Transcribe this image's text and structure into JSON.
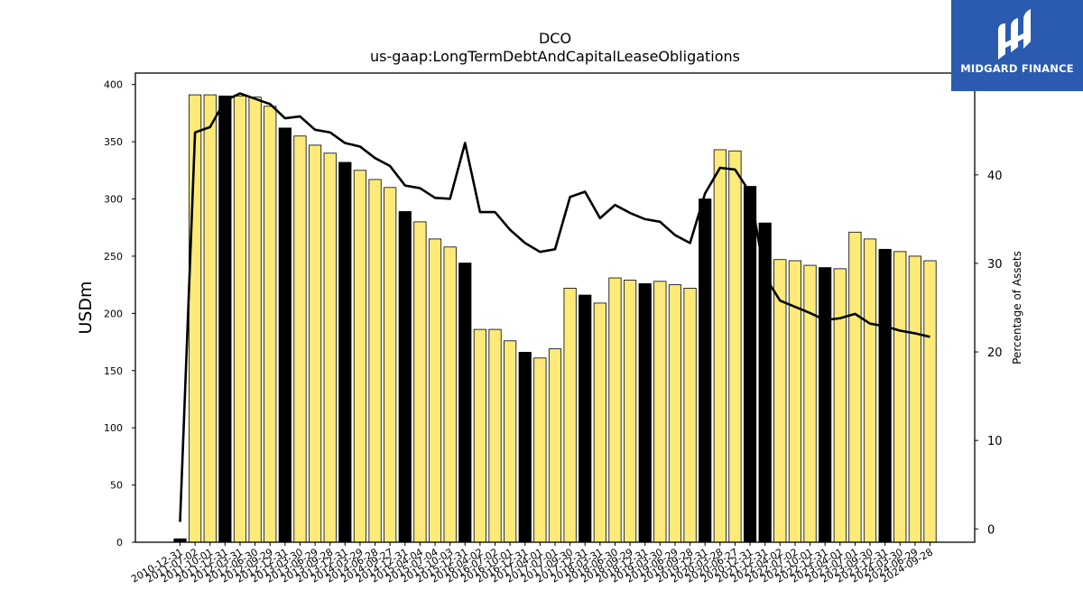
{
  "chart_data": {
    "type": "bar",
    "title": "DCO",
    "subtitle": "us-gaap:LongTermDebtAndCapitalLeaseObligations",
    "ylabel": "USDm",
    "y2label": "Percentage of Assets",
    "ylim": [
      0,
      410
    ],
    "y2lim": [
      -1.5,
      51.5
    ],
    "yticks": [
      0,
      50,
      100,
      150,
      200,
      250,
      300,
      350,
      400
    ],
    "y2ticks": [
      0,
      10,
      20,
      30,
      40
    ],
    "categories": [
      "2010-12-31",
      "2011-07-02",
      "2011-10-01",
      "2011-12-31",
      "2012-03-31",
      "2012-06-30",
      "2012-09-29",
      "2012-12-31",
      "2013-03-30",
      "2013-06-29",
      "2013-09-28",
      "2013-12-31",
      "2014-03-29",
      "2014-06-28",
      "2014-09-27",
      "2014-12-31",
      "2015-04-04",
      "2015-07-04",
      "2015-10-03",
      "2015-12-31",
      "2016-04-02",
      "2016-07-02",
      "2016-10-01",
      "2016-12-31",
      "2017-04-01",
      "2017-07-01",
      "2017-09-30",
      "2017-12-31",
      "2018-03-31",
      "2018-06-30",
      "2018-09-29",
      "2018-12-31",
      "2019-03-30",
      "2019-06-29",
      "2019-09-28",
      "2019-12-31",
      "2020-03-28",
      "2020-06-27",
      "2020-12-31",
      "2021-12-31",
      "2022-04-02",
      "2022-07-02",
      "2022-10-01",
      "2022-12-31",
      "2023-04-01",
      "2023-07-01",
      "2023-09-30",
      "2023-12-31",
      "2024-03-30",
      "2024-06-29",
      "2024-09-28"
    ],
    "series": [
      {
        "kind": "bar",
        "values": [
          3,
          391,
          391,
          390,
          390,
          389,
          381,
          362,
          355,
          347,
          340,
          332,
          325,
          317,
          310,
          289,
          280,
          265,
          258,
          244,
          186,
          186,
          176,
          166,
          161,
          169,
          222,
          216,
          209,
          231,
          229,
          226,
          228,
          225,
          222,
          300,
          343,
          342,
          311,
          279,
          247,
          246,
          242,
          240,
          239,
          271,
          265,
          256,
          254,
          250,
          246
        ]
      },
      {
        "kind": "line",
        "values": [
          0.8,
          44.8,
          45.4,
          48.4,
          49.2,
          48.6,
          48.0,
          46.4,
          46.6,
          45.1,
          44.8,
          43.6,
          43.2,
          41.9,
          41.0,
          38.8,
          38.5,
          37.4,
          37.3,
          43.6,
          35.8,
          35.8,
          33.8,
          32.3,
          31.3,
          31.6,
          37.5,
          38.1,
          35.1,
          36.6,
          35.7,
          35.0,
          34.7,
          33.2,
          32.3,
          37.9,
          40.8,
          40.6,
          38.0,
          28.5,
          25.8,
          25.1,
          24.4,
          23.6,
          23.8,
          24.3,
          23.2,
          22.9,
          22.4,
          22.1,
          21.7
        ]
      }
    ],
    "highlight_color": "#000000",
    "bar_color": "#fdea78",
    "line_color": "#000000"
  },
  "logo": {
    "text": "MIDGARD FINANCE",
    "color": "#2b5bb0"
  }
}
